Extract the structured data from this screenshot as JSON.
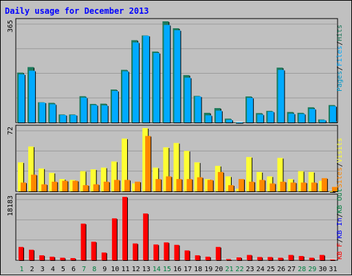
{
  "title": "Daily usage for December 2013",
  "colors": {
    "hits": "#1d7a5c",
    "files": "#00aaff",
    "pages": "#0099cc",
    "visits": "#ffff33",
    "sites": "#ff8800",
    "kbf": "#ff0000",
    "kbin": "#0000ff",
    "kbout": "#008040",
    "weekend": "#007f3f",
    "weekday": "#000000",
    "grid": "#9a9a9a",
    "panel": "#c0c0c0"
  },
  "chart_data": [
    {
      "type": "bar",
      "panel": "top",
      "ymax_label": "365",
      "legend": [
        "Pages",
        "Files",
        "Hits"
      ],
      "ylim": [
        0,
        365
      ],
      "categories": [
        "1",
        "2",
        "3",
        "4",
        "5",
        "6",
        "7",
        "8",
        "9",
        "10",
        "11",
        "12",
        "13",
        "14",
        "15",
        "16",
        "17",
        "18",
        "19",
        "20",
        "21",
        "22",
        "23",
        "24",
        "25",
        "26",
        "27",
        "28",
        "29",
        "30",
        "31"
      ],
      "series": [
        {
          "name": "Hits",
          "values": [
            180,
            200,
            73,
            71,
            29,
            29,
            95,
            67,
            68,
            119,
            190,
            297,
            314,
            256,
            365,
            340,
            171,
            96,
            35,
            52,
            14,
            1,
            94,
            34,
            42,
            198,
            38,
            35,
            55,
            11,
            63
          ]
        },
        {
          "name": "Files",
          "values": [
            174,
            187,
            72,
            66,
            27,
            27,
            90,
            63,
            62,
            114,
            185,
            289,
            313,
            251,
            352,
            333,
            162,
            94,
            26,
            43,
            10,
            1,
            89,
            29,
            39,
            190,
            32,
            31,
            49,
            9,
            59
          ]
        },
        {
          "name": "Pages",
          "values": [
            0,
            0,
            0,
            0,
            0,
            0,
            0,
            0,
            0,
            0,
            0,
            0,
            0,
            0,
            0,
            0,
            0,
            0,
            0,
            0,
            0,
            0,
            0,
            0,
            0,
            0,
            0,
            0,
            0,
            0,
            4
          ]
        }
      ]
    },
    {
      "type": "bar",
      "panel": "middle",
      "ymax_label": "72",
      "legend": [
        "Visits",
        "Sites"
      ],
      "ylim": [
        0,
        72
      ],
      "categories": [
        "1",
        "2",
        "3",
        "4",
        "5",
        "6",
        "7",
        "8",
        "9",
        "10",
        "11",
        "12",
        "13",
        "14",
        "15",
        "16",
        "17",
        "18",
        "19",
        "20",
        "21",
        "22",
        "23",
        "24",
        "25",
        "26",
        "27",
        "28",
        "29",
        "30",
        "31"
      ],
      "series": [
        {
          "name": "Visits",
          "values": [
            33,
            51,
            26,
            21,
            14,
            13,
            23,
            25,
            27,
            34,
            60,
            9,
            72,
            27,
            50,
            55,
            46,
            33,
            14,
            29,
            17,
            3,
            39,
            22,
            17,
            38,
            14,
            23,
            22,
            12,
            0
          ]
        },
        {
          "name": "Sites",
          "values": [
            10,
            19,
            8,
            11,
            12,
            12,
            7,
            8,
            11,
            13,
            13,
            11,
            63,
            14,
            17,
            14,
            14,
            16,
            13,
            22,
            7,
            14,
            11,
            13,
            9,
            11,
            10,
            10,
            10,
            15,
            5
          ]
        }
      ]
    },
    {
      "type": "bar",
      "panel": "bottom",
      "ymax_label": "18183",
      "legend": [
        "KB F",
        "KB In",
        "KB Out"
      ],
      "ylim": [
        0,
        18183
      ],
      "categories": [
        "1",
        "2",
        "3",
        "4",
        "5",
        "6",
        "7",
        "8",
        "9",
        "10",
        "11",
        "12",
        "13",
        "14",
        "15",
        "16",
        "17",
        "18",
        "19",
        "20",
        "21",
        "22",
        "23",
        "24",
        "25",
        "26",
        "27",
        "28",
        "29",
        "30",
        "31"
      ],
      "series": [
        {
          "name": "KB F",
          "values": [
            3800,
            3000,
            1400,
            1000,
            700,
            600,
            10500,
            5300,
            2200,
            12000,
            18183,
            4800,
            13400,
            4500,
            5100,
            4400,
            2800,
            1400,
            1000,
            3800,
            300,
            800,
            1500,
            900,
            900,
            700,
            1500,
            1200,
            700,
            1500,
            200
          ]
        },
        {
          "name": "KB In",
          "values": [
            0,
            0,
            0,
            0,
            0,
            0,
            0,
            0,
            0,
            0,
            0,
            0,
            0,
            0,
            0,
            0,
            0,
            0,
            0,
            0,
            0,
            0,
            0,
            0,
            0,
            0,
            0,
            0,
            0,
            0,
            0
          ]
        },
        {
          "name": "KB Out",
          "values": [
            0,
            0,
            0,
            0,
            0,
            0,
            0,
            0,
            0,
            0,
            0,
            0,
            0,
            0,
            0,
            0,
            0,
            0,
            0,
            0,
            0,
            0,
            0,
            0,
            0,
            0,
            0,
            0,
            0,
            0,
            0
          ]
        }
      ]
    }
  ],
  "weekend_days": [
    1,
    7,
    8,
    14,
    15,
    21,
    22,
    28,
    29
  ]
}
